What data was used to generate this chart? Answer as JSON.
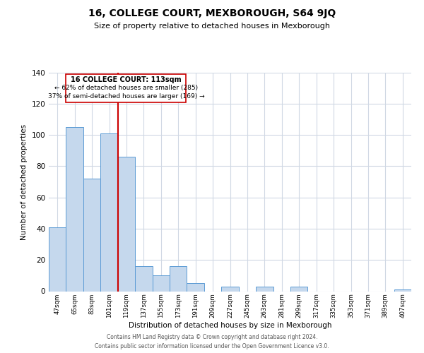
{
  "title": "16, COLLEGE COURT, MEXBOROUGH, S64 9JQ",
  "subtitle": "Size of property relative to detached houses in Mexborough",
  "xlabel": "Distribution of detached houses by size in Mexborough",
  "ylabel": "Number of detached properties",
  "bar_labels": [
    "47sqm",
    "65sqm",
    "83sqm",
    "101sqm",
    "119sqm",
    "137sqm",
    "155sqm",
    "173sqm",
    "191sqm",
    "209sqm",
    "227sqm",
    "245sqm",
    "263sqm",
    "281sqm",
    "299sqm",
    "317sqm",
    "335sqm",
    "353sqm",
    "371sqm",
    "389sqm",
    "407sqm"
  ],
  "bar_values": [
    41,
    105,
    72,
    101,
    86,
    16,
    10,
    16,
    5,
    0,
    3,
    0,
    3,
    0,
    3,
    0,
    0,
    0,
    0,
    0,
    1
  ],
  "bar_color": "#c5d8ed",
  "bar_edge_color": "#5b9bd5",
  "ylim": [
    0,
    140
  ],
  "yticks": [
    0,
    20,
    40,
    60,
    80,
    100,
    120,
    140
  ],
  "vline_index": 4,
  "marker_label": "16 COLLEGE COURT: 113sqm",
  "annotation_line1": "← 62% of detached houses are smaller (285)",
  "annotation_line2": "37% of semi-detached houses are larger (169) →",
  "vline_color": "#cc0000",
  "box_edge_color": "#cc0000",
  "footer_line1": "Contains HM Land Registry data © Crown copyright and database right 2024.",
  "footer_line2": "Contains public sector information licensed under the Open Government Licence v3.0.",
  "background_color": "#ffffff",
  "grid_color": "#d0d8e4"
}
